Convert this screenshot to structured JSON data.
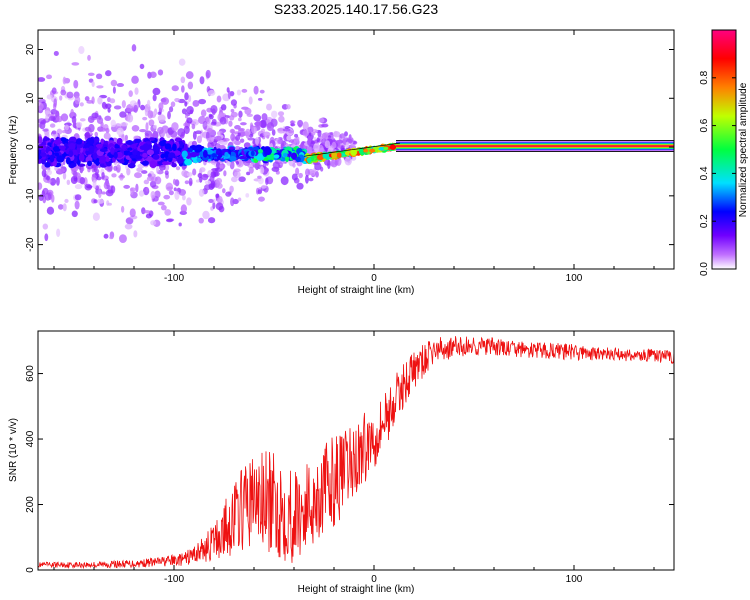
{
  "title": "S233.2025.140.17.56.G23",
  "chart_data": [
    {
      "type": "heatmap",
      "xlabel": "Height of straight line (km)",
      "ylabel": "Frequency (Hz)",
      "xlim": [
        -168,
        150
      ],
      "ylim": [
        -25,
        24
      ],
      "x_ticks": [
        -100,
        0,
        100
      ],
      "x_tick_labels": [
        "-100",
        "0",
        "100"
      ],
      "y_ticks": [
        -20,
        -10,
        0,
        10,
        20
      ],
      "y_tick_labels": [
        "-20",
        "-10",
        "0",
        "10",
        "20"
      ],
      "colorbar": {
        "label": "Normalized spectral amplitude",
        "range": [
          0,
          1
        ],
        "ticks": [
          0.0,
          0.2,
          0.4,
          0.6,
          0.8
        ],
        "tick_labels": [
          "0.0",
          "0.2",
          "0.4",
          "0.6",
          "0.8"
        ],
        "colors": [
          "#ffffff",
          "#a000ff",
          "#0000ff",
          "#00ffff",
          "#00ff00",
          "#ffff00",
          "#ff8000",
          "#ff0000",
          "#ff0080"
        ]
      },
      "features": {
        "steady_line": {
          "x_start": 13,
          "x_end": 150,
          "frequency": 0.2,
          "amplitude": 1.0
        },
        "transition": {
          "x_start": -35,
          "x_end": 13,
          "frequency_start": -2.5,
          "frequency_end": 0.2
        },
        "scatter_region": {
          "x_start": -168,
          "x_end": -35,
          "frequency_spread": 22
        }
      }
    },
    {
      "type": "line",
      "xlabel": "Height of straight line (km)",
      "ylabel": "SNR (10 * v/v)",
      "xlim": [
        -168,
        150
      ],
      "ylim": [
        0,
        730
      ],
      "x_ticks": [
        -100,
        0,
        100
      ],
      "x_tick_labels": [
        "-100",
        "0",
        "100"
      ],
      "y_ticks": [
        0,
        200,
        400,
        600
      ],
      "y_tick_labels": [
        "0",
        "200",
        "400",
        "600"
      ],
      "color": "#ee1111",
      "x": [
        -168,
        -140,
        -120,
        -105,
        -95,
        -90,
        -85,
        -80,
        -75,
        -70,
        -65,
        -60,
        -55,
        -50,
        -45,
        -40,
        -35,
        -30,
        -25,
        -20,
        -15,
        -10,
        -5,
        0,
        5,
        10,
        15,
        20,
        25,
        30,
        40,
        50,
        60,
        70,
        80,
        90,
        100,
        110,
        120,
        130,
        140,
        150
      ],
      "values": [
        15,
        15,
        18,
        25,
        30,
        45,
        60,
        80,
        110,
        150,
        180,
        200,
        190,
        180,
        170,
        150,
        170,
        200,
        230,
        260,
        280,
        320,
        360,
        400,
        450,
        500,
        560,
        610,
        640,
        670,
        680,
        685,
        680,
        675,
        670,
        670,
        665,
        660,
        660,
        655,
        655,
        650
      ],
      "spread": [
        8,
        10,
        12,
        15,
        20,
        30,
        40,
        60,
        90,
        110,
        130,
        150,
        160,
        160,
        160,
        150,
        140,
        140,
        140,
        140,
        130,
        120,
        110,
        100,
        90,
        80,
        70,
        60,
        50,
        40,
        35,
        30,
        30,
        25,
        25,
        25,
        25,
        20,
        20,
        20,
        20,
        20
      ]
    }
  ]
}
